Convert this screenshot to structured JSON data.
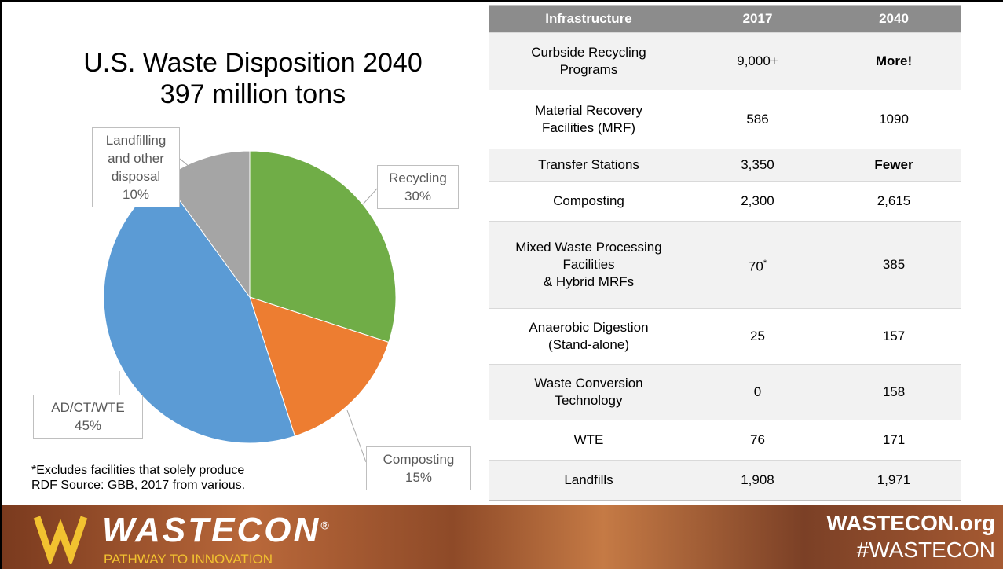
{
  "chart_data": {
    "type": "pie",
    "title": "U.S. Waste Disposition 2040",
    "subtitle": "397 million tons",
    "categories": [
      "Recycling",
      "Composting",
      "AD/CT/WTE",
      "Landfilling and other disposal"
    ],
    "values": [
      30,
      15,
      45,
      10
    ],
    "value_labels": [
      "30%",
      "15%",
      "45%",
      "10%"
    ],
    "colors": [
      "#70ad47",
      "#ed7d31",
      "#5b9bd5",
      "#a5a5a5"
    ]
  },
  "table": {
    "header": [
      "Infrastructure",
      "2017",
      "2040"
    ],
    "rows": [
      {
        "label": [
          "Curbside Recycling",
          "Programs"
        ],
        "v2017": "9,000+",
        "v2040": "More!",
        "bold2040": true
      },
      {
        "label": [
          "Material Recovery",
          "Facilities (MRF)"
        ],
        "v2017": "586",
        "v2040": "1090"
      },
      {
        "label": [
          "Transfer Stations"
        ],
        "v2017": "3,350",
        "v2040": "Fewer",
        "bold2040": true
      },
      {
        "label": [
          "Composting"
        ],
        "v2017": "2,300",
        "v2040": "2,615"
      },
      {
        "label": [
          "Mixed Waste Processing",
          "Facilities",
          "& Hybrid MRFs"
        ],
        "v2017": "70",
        "note2017": "*",
        "v2040": "385"
      },
      {
        "label": [
          "Anaerobic Digestion",
          "(Stand-alone)"
        ],
        "v2017": "25",
        "v2040": "157"
      },
      {
        "label": [
          "Waste Conversion",
          "Technology"
        ],
        "v2017": "0",
        "v2040": "158"
      },
      {
        "label": [
          "WTE"
        ],
        "v2017": "76",
        "v2040": "171"
      },
      {
        "label": [
          "Landfills"
        ],
        "v2017": "1,908",
        "v2040": "1,971"
      }
    ]
  },
  "footnote": [
    "*Excludes facilities that solely produce",
    "RDF  Source: GBB, 2017 from various."
  ],
  "footer": {
    "logo": "WASTECON",
    "registered": "®",
    "tagline": "PATHWAY TO INNOVATION",
    "site": "WASTECON.org",
    "hashtag": "#WASTECON"
  }
}
